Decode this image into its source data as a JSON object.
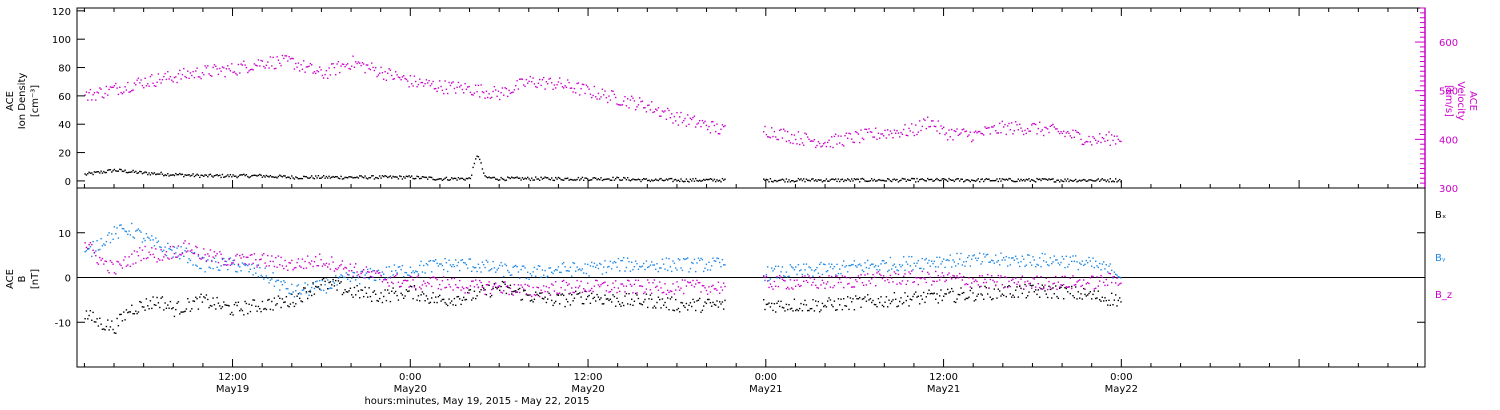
{
  "colors": {
    "axis": "#000000",
    "density": "#000000",
    "velocity": "#cc00cc",
    "bx": "#000000",
    "by": "#1e88e5",
    "bz": "#cc00cc"
  },
  "xaxis": {
    "label": "hours:minutes, May 19, 2015 - May 22, 2015",
    "range_hours": [
      -10.5,
      80.5
    ],
    "ticks": [
      {
        "h": 0,
        "time": "12:00",
        "date": "May19"
      },
      {
        "h": 12,
        "time": "0:00",
        "date": "May20"
      },
      {
        "h": 24,
        "time": "12:00",
        "date": "May20"
      },
      {
        "h": 36,
        "time": "0:00",
        "date": "May21"
      },
      {
        "h": 48,
        "time": "12:00",
        "date": "May21"
      },
      {
        "h": 60,
        "time": "0:00",
        "date": "May22"
      }
    ]
  },
  "chart_data": [
    {
      "type": "scatter",
      "title": "",
      "ylabel_left": [
        "ACE",
        "Ion Density",
        "[cm⁻³]"
      ],
      "ylabel_right": [
        "ACE",
        "Velocity",
        "[km/s]"
      ],
      "ylim_left": [
        -5,
        122
      ],
      "ylim_right": [
        300,
        670
      ],
      "yticks_left": [
        0,
        20,
        40,
        60,
        80,
        100,
        120
      ],
      "yticks_right": [
        300,
        400,
        500,
        600
      ],
      "series": [
        {
          "key": "density",
          "axis": "left",
          "x": [
            -10,
            -8,
            -6,
            -4,
            -2,
            0,
            2,
            4,
            6,
            8,
            10,
            12,
            14,
            16,
            16.5,
            17,
            18,
            20,
            22,
            24,
            26,
            28,
            30,
            32,
            33,
            36,
            40,
            44,
            48,
            52,
            56,
            58,
            60
          ],
          "values": [
            5,
            8,
            6,
            5,
            4,
            4,
            4,
            3,
            3,
            3,
            3,
            3,
            2,
            2,
            20,
            3,
            2,
            2,
            2,
            2,
            2,
            1,
            1,
            1,
            1,
            1,
            1,
            1,
            1,
            1,
            1,
            1,
            1
          ]
        },
        {
          "key": "velocity",
          "axis": "right",
          "x": [
            -10,
            -8,
            -6,
            -4,
            -2,
            0,
            2,
            4,
            6,
            8,
            10,
            12,
            14,
            16,
            17,
            18,
            20,
            22,
            24,
            26,
            28,
            30,
            32,
            33,
            36,
            38,
            40,
            42,
            44,
            46,
            47,
            48,
            50,
            52,
            54,
            56,
            58,
            60
          ],
          "values": [
            490,
            505,
            520,
            530,
            540,
            545,
            560,
            560,
            535,
            560,
            540,
            520,
            510,
            505,
            500,
            495,
            520,
            515,
            500,
            485,
            470,
            445,
            430,
            420,
            420,
            405,
            395,
            405,
            415,
            420,
            440,
            415,
            410,
            425,
            425,
            415,
            400,
            405
          ]
        }
      ]
    },
    {
      "type": "scatter",
      "title": "",
      "ylabel": [
        "ACE",
        "B",
        "[nT]"
      ],
      "ylim": [
        -20,
        20
      ],
      "yticks": [
        -10,
        0,
        10
      ],
      "series": [
        {
          "key": "bx",
          "name": "Bₓ",
          "x": [
            -10,
            -9,
            -8,
            -7,
            -6,
            -5,
            -4,
            -3,
            -2,
            0,
            2,
            4,
            6,
            8,
            10,
            12,
            14,
            16,
            18,
            20,
            22,
            24,
            26,
            28,
            30,
            32,
            33,
            36,
            40,
            44,
            48,
            52,
            56,
            58,
            60
          ],
          "values": [
            -8,
            -10,
            -11,
            -7,
            -6,
            -5,
            -7,
            -6,
            -5,
            -7,
            -6,
            -5,
            -1,
            -3,
            -4,
            -3,
            -5,
            -4,
            -2,
            -4,
            -5,
            -4,
            -5,
            -5,
            -6,
            -6,
            -6,
            -6,
            -6,
            -5,
            -4,
            -3,
            -3,
            -4,
            -5
          ]
        },
        {
          "key": "by",
          "name": "Bᵧ",
          "x": [
            -10,
            -9,
            -8,
            -7,
            -6,
            -5,
            -4,
            -3,
            -2,
            0,
            2,
            4,
            6,
            8,
            10,
            12,
            14,
            16,
            18,
            20,
            22,
            24,
            26,
            28,
            30,
            32,
            33,
            36,
            40,
            44,
            48,
            52,
            56,
            58,
            60
          ],
          "values": [
            5,
            8,
            10,
            11,
            9,
            7,
            6,
            5,
            3,
            3,
            1,
            -3,
            -2,
            0,
            1,
            2,
            3,
            3,
            2,
            1,
            2,
            2,
            3,
            3,
            3,
            3,
            3,
            1,
            2,
            3,
            4,
            4,
            4,
            3,
            1
          ]
        },
        {
          "key": "bz",
          "name": "B_z",
          "x": [
            -10,
            -9,
            -8,
            -7,
            -6,
            -5,
            -4,
            -3,
            -2,
            0,
            2,
            4,
            6,
            8,
            10,
            12,
            14,
            16,
            18,
            20,
            22,
            24,
            26,
            28,
            30,
            32,
            33,
            36,
            40,
            44,
            48,
            52,
            56,
            58,
            60
          ],
          "values": [
            8,
            4,
            2,
            4,
            6,
            5,
            6,
            7,
            5,
            4,
            4,
            3,
            4,
            2,
            0,
            -1,
            -1,
            -2,
            -2,
            -3,
            -2,
            -2,
            -2,
            -2,
            -2,
            -2,
            -2,
            -1,
            -1,
            0,
            0,
            -1,
            -1,
            -1,
            0
          ]
        }
      ]
    }
  ]
}
